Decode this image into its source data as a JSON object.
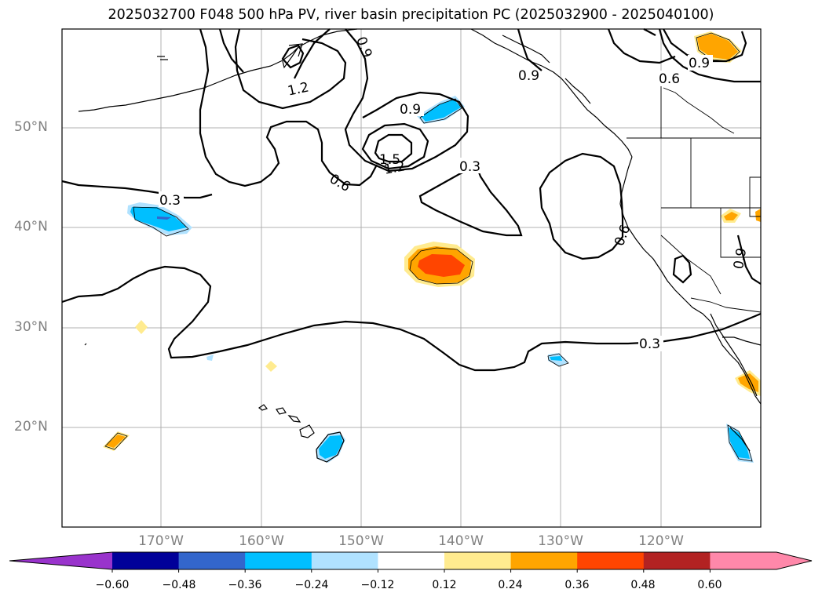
{
  "title": "2025032700 F048 500 hPa PV, river basin precipitation PC (2025032900 - 2025040100)",
  "lat_labels": [
    "50°N",
    "40°N",
    "30°N",
    "20°N"
  ],
  "lon_labels": [
    "170°W",
    "160°W",
    "150°W",
    "140°W",
    "130°W",
    "120°W"
  ],
  "contour_labels": [
    "0.3",
    "0.3",
    "0.3",
    "0.6",
    "0.6",
    "0.9",
    "0.9",
    "0.9",
    "1.2",
    "1.2",
    "1.5",
    "0.9",
    "0.6",
    "0.9"
  ],
  "colorbar": {
    "ticks": [
      "−0.60",
      "−0.48",
      "−0.36",
      "−0.24",
      "−0.12",
      "0.12",
      "0.24",
      "0.36",
      "0.48",
      "0.60"
    ],
    "colors": [
      "#9933cc",
      "#000099",
      "#3366cc",
      "#00bfff",
      "#b0e2ff",
      "#ffffff",
      "#ffeb8f",
      "#ffa500",
      "#ff4500",
      "#b22222",
      "#ff88aa",
      "#ff88aa"
    ]
  },
  "colors": {
    "grid": "#b0b0b0",
    "coast": "#000000",
    "pv_contour": "#000000",
    "tick_text": "#808080"
  }
}
